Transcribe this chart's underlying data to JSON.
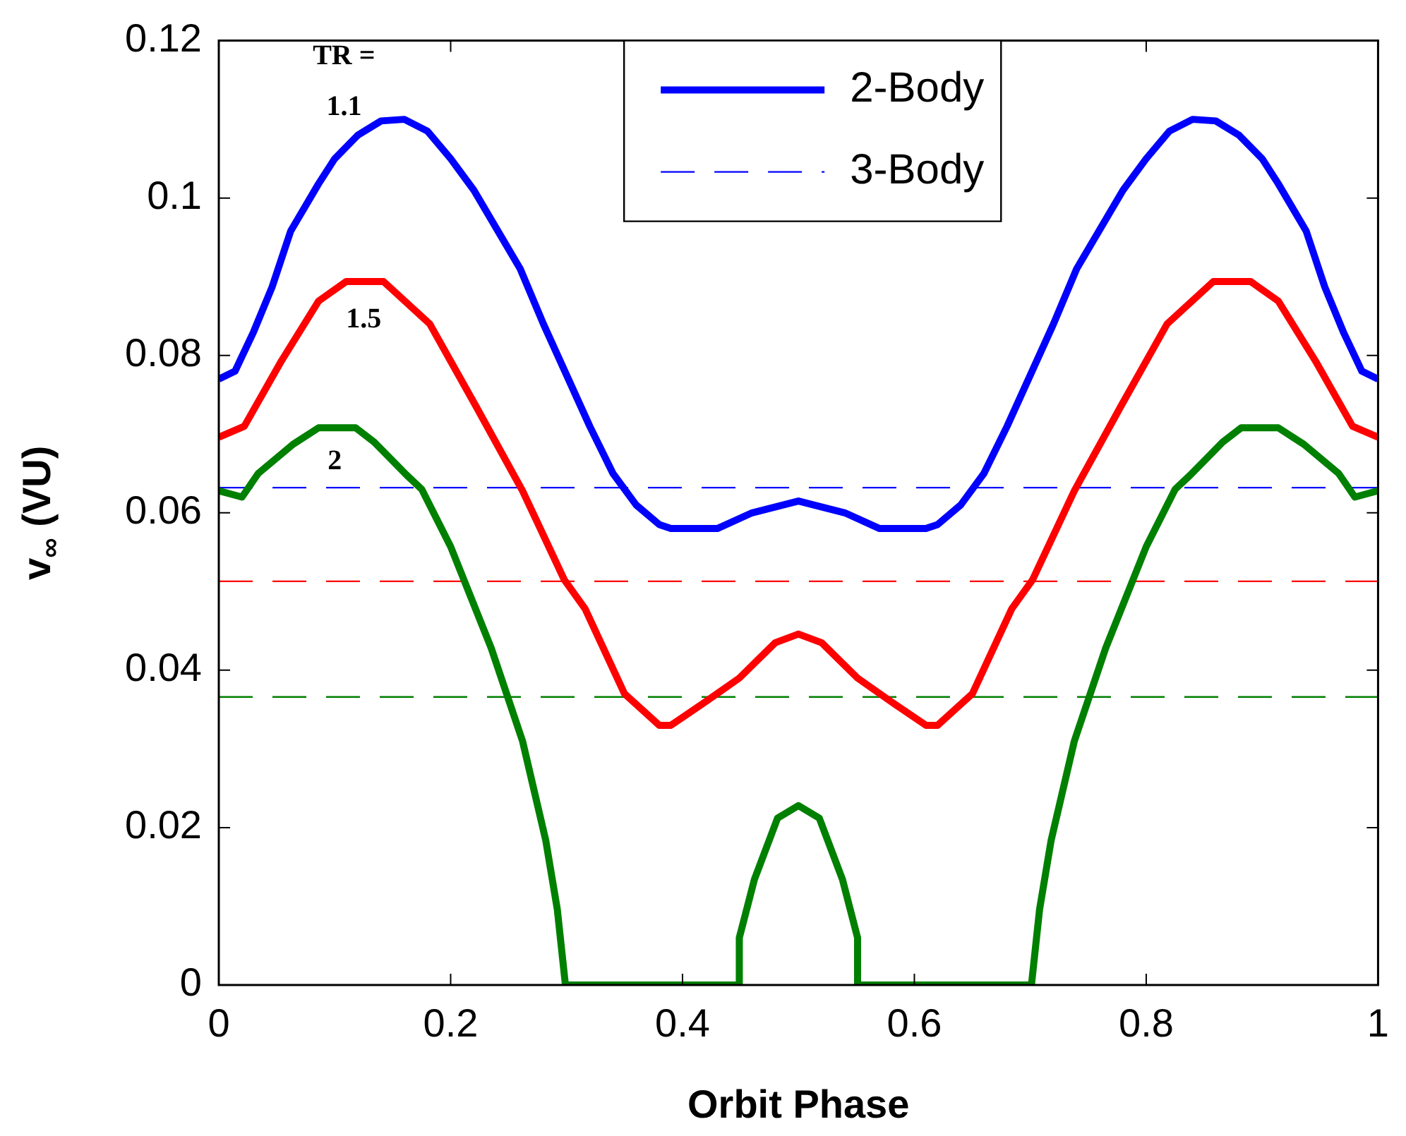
{
  "chart_data": {
    "type": "line",
    "xlabel": "Orbit Phase",
    "ylabel": "v$_{∞}$ (VU)",
    "xlim": [
      0,
      1
    ],
    "xticks": [
      0,
      0.2,
      0.4,
      0.6,
      0.8,
      1
    ],
    "ylim": [
      0,
      0.12
    ],
    "yticks": [
      0,
      0.02,
      0.04,
      0.06,
      0.08,
      0.1,
      0.12
    ],
    "grid": false,
    "legend": "top",
    "marker": "none",
    "series": [
      {
        "name": "2-Body",
        "color": "#0000ff",
        "line_style": "solid",
        "x": [
          0,
          0.014,
          0.03,
          0.046,
          0.062,
          0.086,
          0.1,
          0.12,
          0.14,
          0.16,
          0.18,
          0.2,
          0.22,
          0.24,
          0.26,
          0.28,
          0.3,
          0.32,
          0.34,
          0.36,
          0.38,
          0.39,
          0.43,
          0.46,
          0.5,
          0.54,
          0.57,
          0.61,
          0.62,
          0.64,
          0.66,
          0.68,
          0.7,
          0.72,
          0.74,
          0.76,
          0.78,
          0.8,
          0.82,
          0.84,
          0.86,
          0.88,
          0.9,
          0.914,
          0.938,
          0.954,
          0.97,
          0.986,
          1
        ],
        "values": [
          0.077,
          0.078,
          0.083,
          0.0887,
          0.0958,
          0.1018,
          0.105,
          0.108,
          0.1098,
          0.11,
          0.1085,
          0.105,
          0.101,
          0.096,
          0.091,
          0.084,
          0.0775,
          0.071,
          0.065,
          0.061,
          0.0585,
          0.058,
          0.058,
          0.06,
          0.0615,
          0.06,
          0.058,
          0.058,
          0.0585,
          0.061,
          0.065,
          0.071,
          0.0775,
          0.084,
          0.091,
          0.096,
          0.101,
          0.105,
          0.1085,
          0.11,
          0.1098,
          0.108,
          0.105,
          0.1018,
          0.0958,
          0.0887,
          0.083,
          0.078,
          0.077
        ]
      },
      {
        "color": "#ff0000",
        "line_style": "solid",
        "x": [
          0,
          0.022,
          0.054,
          0.086,
          0.11,
          0.142,
          0.182,
          0.222,
          0.262,
          0.298,
          0.316,
          0.35,
          0.38,
          0.39,
          0.42,
          0.449,
          0.48,
          0.5,
          0.52,
          0.551,
          0.58,
          0.61,
          0.62,
          0.65,
          0.684,
          0.702,
          0.738,
          0.778,
          0.818,
          0.858,
          0.89,
          0.914,
          0.946,
          0.978,
          1
        ],
        "values": [
          0.0696,
          0.071,
          0.0793,
          0.0869,
          0.0894,
          0.0894,
          0.084,
          0.0735,
          0.0628,
          0.0515,
          0.0478,
          0.037,
          0.033,
          0.033,
          0.036,
          0.039,
          0.0435,
          0.0446,
          0.0435,
          0.039,
          0.036,
          0.033,
          0.033,
          0.037,
          0.0478,
          0.0515,
          0.0628,
          0.0735,
          0.084,
          0.0894,
          0.0894,
          0.0869,
          0.0793,
          0.071,
          0.0696
        ]
      },
      {
        "color": "#008000",
        "line_style": "solid",
        "x": [
          0,
          0.02,
          0.034,
          0.064,
          0.086,
          0.118,
          0.134,
          0.162,
          0.175,
          0.2,
          0.235,
          0.262,
          0.282,
          0.292,
          0.299,
          0.449,
          0.449,
          0.462,
          0.482,
          0.5,
          0.518,
          0.538,
          0.551,
          0.551,
          0.701,
          0.708,
          0.718,
          0.738,
          0.765,
          0.8,
          0.825,
          0.838,
          0.866,
          0.882,
          0.914,
          0.936,
          0.966,
          0.98,
          1
        ],
        "values": [
          0.0628,
          0.062,
          0.065,
          0.0687,
          0.0708,
          0.0708,
          0.069,
          0.0648,
          0.063,
          0.0557,
          0.0428,
          0.031,
          0.0184,
          0.0096,
          0,
          0,
          0.006,
          0.0134,
          0.0212,
          0.0228,
          0.0212,
          0.0134,
          0.006,
          0,
          0,
          0.0096,
          0.0184,
          0.031,
          0.0428,
          0.0557,
          0.063,
          0.0648,
          0.069,
          0.0708,
          0.0708,
          0.0687,
          0.065,
          0.062,
          0.0628
        ]
      },
      {
        "name": "3-Body",
        "color": "#0000ff",
        "line_style": "dashed",
        "x": [
          0,
          1
        ],
        "values": [
          0.0632,
          0.0632
        ]
      },
      {
        "color": "#ff0000",
        "line_style": "dashed",
        "x": [
          0,
          1
        ],
        "values": [
          0.0513,
          0.0513
        ]
      },
      {
        "color": "#008000",
        "line_style": "dashed",
        "x": [
          0,
          1
        ],
        "values": [
          0.0366,
          0.0366
        ]
      }
    ],
    "annotations": [
      "TR =",
      "1.1",
      "1.5",
      "2"
    ]
  }
}
